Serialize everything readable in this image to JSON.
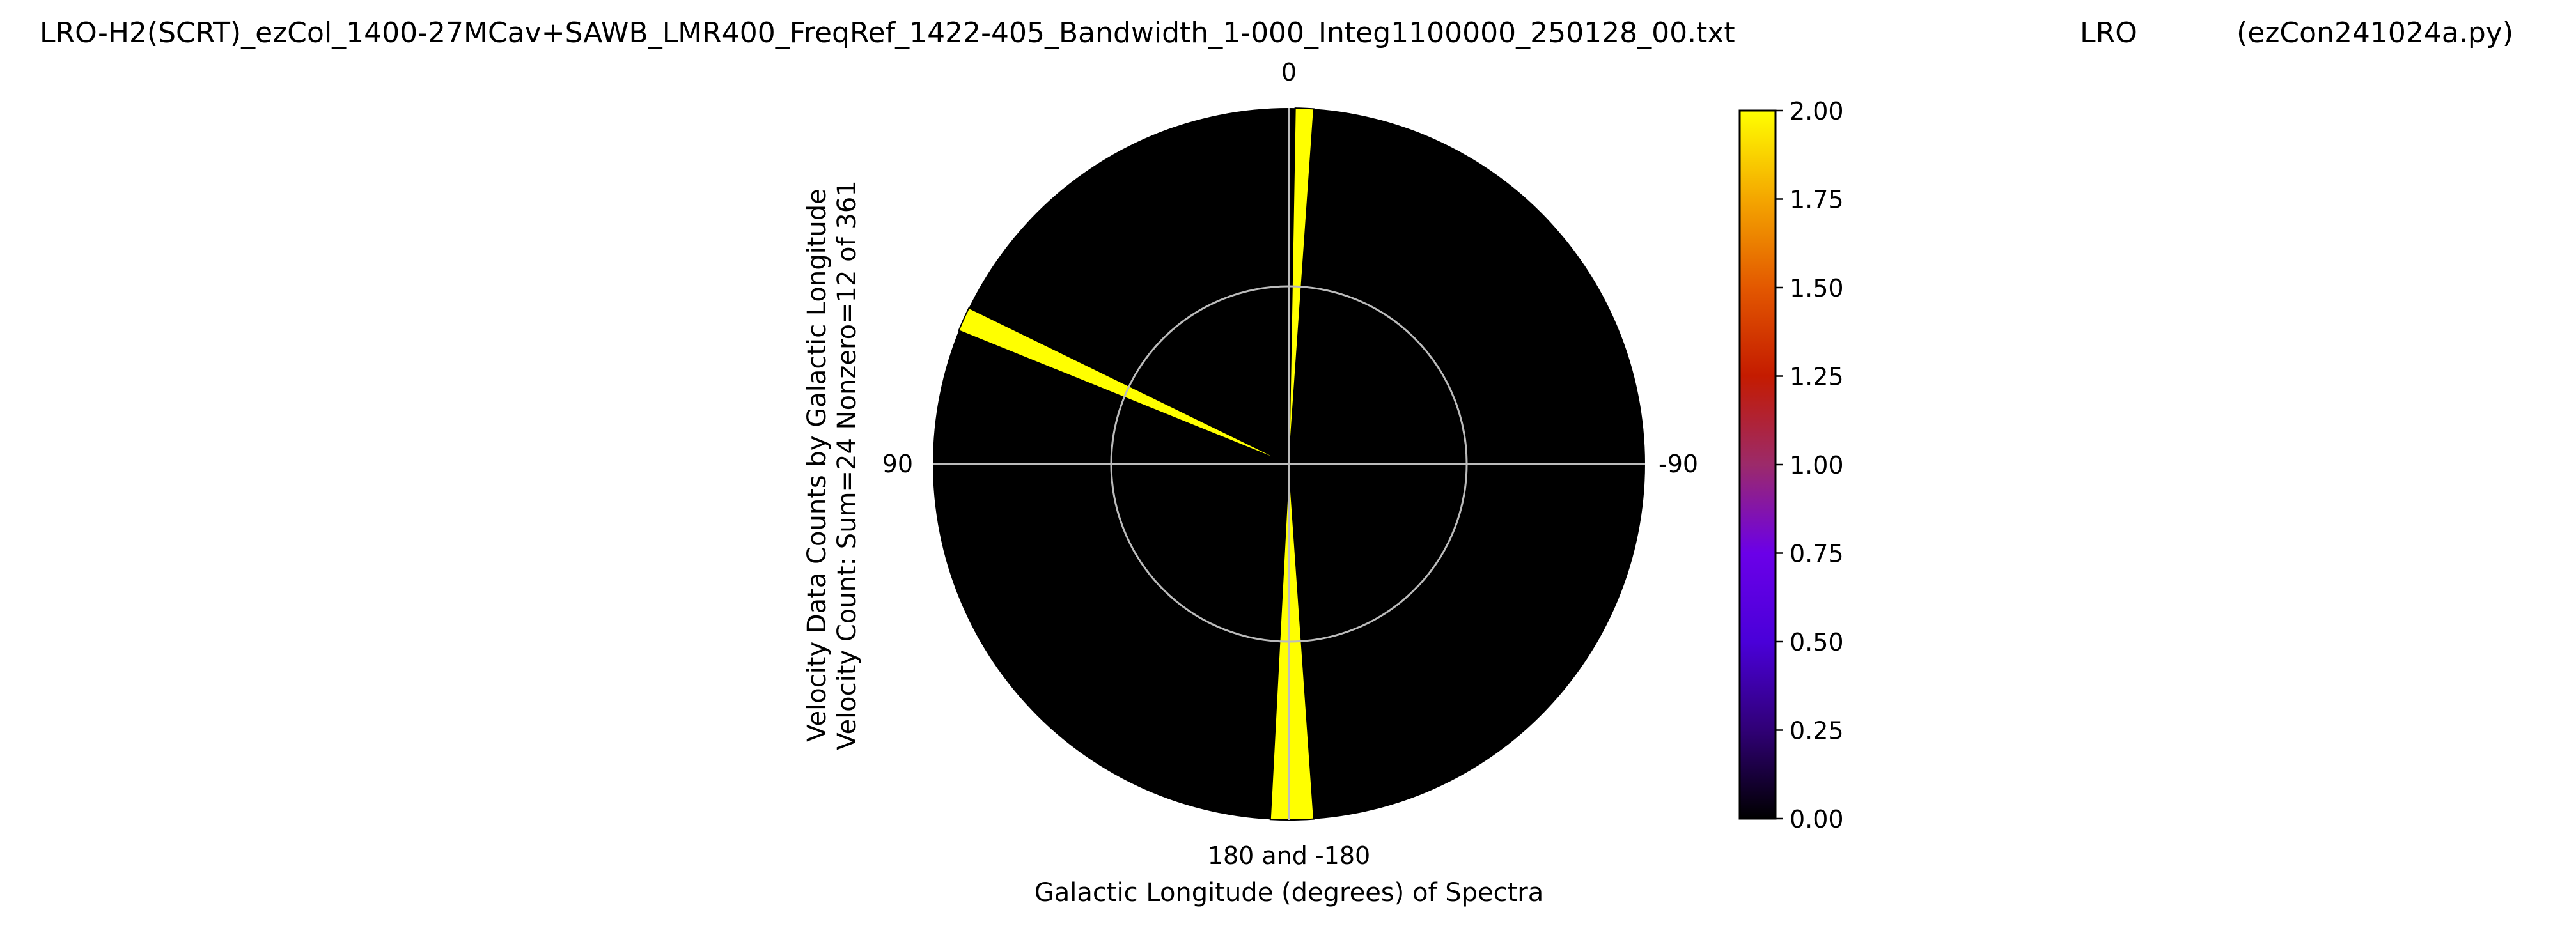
{
  "header": {
    "filename": "LRO-H2(SCRT)_ezCol_1400-27MCav+SAWB_LMR400_FreqRef_1422-405_Bandwidth_1-000_Integ1100000_250128_00.txt",
    "station": "LRO",
    "program": "(ezCon241024a.py)"
  },
  "chart_data": {
    "type": "polar-heatmap",
    "ylabel_line1": "Velocity Data Counts by Galactic Longitude",
    "ylabel_line2": "Velocity Count: Sum=24 Nonzero=12 of 361",
    "xlabel": "Galactic Longitude (degrees) of Spectra",
    "angle_labels": {
      "top": "0",
      "left": "90",
      "right": "-90",
      "bottom": "180 and -180"
    },
    "angle_convention": "0 at top, positive galactic longitude counter-clockwise",
    "background_color": "#000000",
    "grid": true,
    "grid_color": "#bbbbbb",
    "inner_ring_fraction": 0.5,
    "wedges": [
      {
        "lon_from": 64,
        "lon_to": 68,
        "value": 2
      },
      {
        "lon_from": -4,
        "lon_to": -1,
        "value": 2
      },
      {
        "lon_from": 177,
        "lon_to": 180,
        "value": 2
      },
      {
        "lon_from": -180,
        "lon_to": -176,
        "value": 2
      }
    ],
    "colorbar": {
      "colormap": "gnuplot",
      "vmin": 0,
      "vmax": 2,
      "ticks": [
        "0.00",
        "0.25",
        "0.50",
        "0.75",
        "1.00",
        "1.25",
        "1.50",
        "1.75",
        "2.00"
      ],
      "placement": "right"
    }
  }
}
